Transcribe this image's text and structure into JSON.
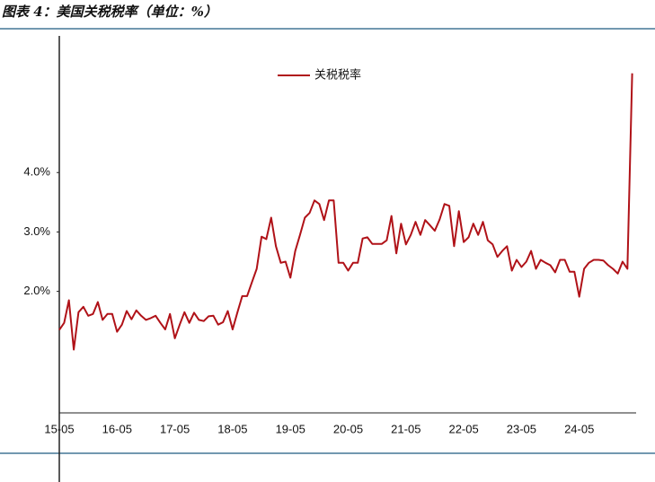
{
  "chart_data": {
    "type": "line",
    "title": "图表 4：美国关税税率（单位：%）",
    "categories": [
      "15-05",
      null,
      null,
      null,
      null,
      null,
      null,
      null,
      null,
      null,
      null,
      null,
      "16-05",
      null,
      null,
      null,
      null,
      null,
      null,
      null,
      null,
      null,
      null,
      null,
      "17-05",
      null,
      null,
      null,
      null,
      null,
      null,
      null,
      null,
      null,
      null,
      null,
      "18-05",
      null,
      null,
      null,
      null,
      null,
      null,
      null,
      null,
      null,
      null,
      null,
      "19-05",
      null,
      null,
      null,
      null,
      null,
      null,
      null,
      null,
      null,
      null,
      null,
      "20-05",
      null,
      null,
      null,
      null,
      null,
      null,
      null,
      null,
      null,
      null,
      null,
      "21-05",
      null,
      null,
      null,
      null,
      null,
      null,
      null,
      null,
      null,
      null,
      null,
      "22-05",
      null,
      null,
      null,
      null,
      null,
      null,
      null,
      null,
      null,
      null,
      null,
      "23-05",
      null,
      null,
      null,
      null,
      null,
      null,
      null,
      null,
      null,
      null,
      null,
      "24-05",
      null,
      null,
      null,
      null,
      null,
      null,
      null,
      null,
      null,
      null,
      null
    ],
    "series": [
      {
        "name": "关税税率",
        "color": "#b01218",
        "values": [
          1.35,
          1.47,
          1.85,
          1.02,
          1.65,
          1.74,
          1.59,
          1.62,
          1.82,
          1.52,
          1.62,
          1.62,
          1.32,
          1.44,
          1.67,
          1.53,
          1.68,
          1.59,
          1.52,
          1.55,
          1.59,
          1.47,
          1.36,
          1.62,
          1.21,
          1.44,
          1.65,
          1.47,
          1.64,
          1.52,
          1.5,
          1.58,
          1.59,
          1.44,
          1.48,
          1.67,
          1.36,
          1.65,
          1.92,
          1.92,
          2.15,
          2.38,
          2.92,
          2.88,
          3.24,
          2.76,
          2.48,
          2.5,
          2.23,
          2.68,
          2.95,
          3.24,
          3.32,
          3.53,
          3.47,
          3.2,
          3.53,
          3.53,
          2.48,
          2.48,
          2.35,
          2.48,
          2.48,
          2.89,
          2.91,
          2.8,
          2.8,
          2.8,
          2.86,
          3.27,
          2.64,
          3.14,
          2.79,
          2.95,
          3.17,
          2.95,
          3.2,
          3.11,
          3.02,
          3.21,
          3.47,
          3.44,
          2.76,
          3.35,
          2.83,
          2.91,
          3.14,
          2.95,
          3.17,
          2.86,
          2.79,
          2.58,
          2.68,
          2.76,
          2.35,
          2.53,
          2.41,
          2.5,
          2.68,
          2.38,
          2.53,
          2.48,
          2.44,
          2.32,
          2.53,
          2.53,
          2.33,
          2.33,
          1.91,
          2.38,
          2.48,
          2.53,
          2.53,
          2.52,
          2.44,
          2.38,
          2.3,
          2.5,
          2.38,
          5.67
        ]
      }
    ],
    "ylim": [
      0,
      6.3
    ],
    "yticks": [
      {
        "value": 2,
        "label": "2.0%"
      },
      {
        "value": 3,
        "label": "3.0%"
      },
      {
        "value": 4,
        "label": "4.0%"
      }
    ],
    "grid": false
  }
}
